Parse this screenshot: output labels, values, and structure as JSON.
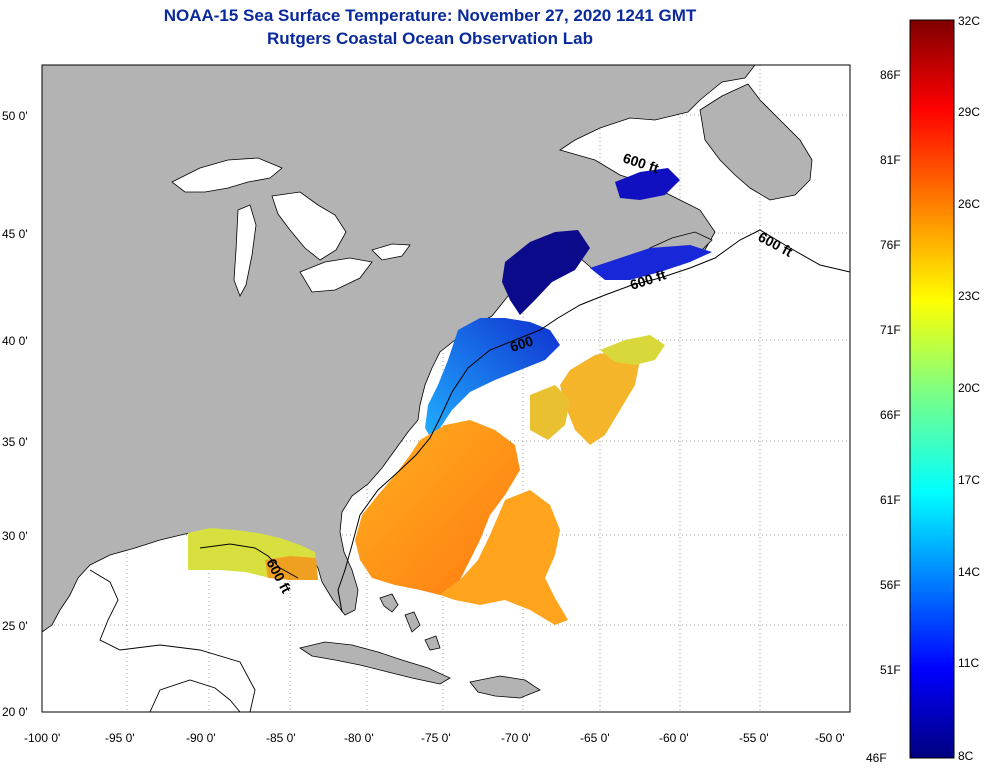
{
  "title_line1": "NOAA-15 Sea Surface Temperature:  November 27, 2020 1241 GMT",
  "title_line2": "Rutgers Coastal Ocean Observation Lab",
  "lon_ticks": [
    "-100 0'",
    "-95 0'",
    "-90 0'",
    "-85 0'",
    "-80 0'",
    "-75 0'",
    "-70 0'",
    "-65 0'",
    "-60 0'",
    "-55 0'",
    "-50 0'"
  ],
  "lat_ticks": [
    "50 0'",
    "45 0'",
    "40 0'",
    "35 0'",
    "30 0'",
    "25 0'",
    "20 0'"
  ],
  "contour_labels": [
    "600 ft",
    "600 ft",
    "600 ft",
    "600",
    "600 ft"
  ],
  "colorbar": {
    "celsius": [
      "32C",
      "29C",
      "26C",
      "23C",
      "20C",
      "17C",
      "14C",
      "11C",
      "8C"
    ],
    "fahrenheit": [
      "86F",
      "81F",
      "76F",
      "71F",
      "66F",
      "61F",
      "56F",
      "51F",
      "46F"
    ]
  },
  "colors": {
    "land": "#b3b3b3",
    "title": "#0a2a9c"
  }
}
